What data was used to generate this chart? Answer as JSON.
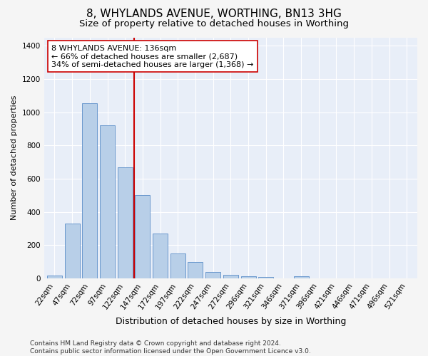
{
  "title": "8, WHYLANDS AVENUE, WORTHING, BN13 3HG",
  "subtitle": "Size of property relative to detached houses in Worthing",
  "xlabel": "Distribution of detached houses by size in Worthing",
  "ylabel": "Number of detached properties",
  "bar_labels": [
    "22sqm",
    "47sqm",
    "72sqm",
    "97sqm",
    "122sqm",
    "147sqm",
    "172sqm",
    "197sqm",
    "222sqm",
    "247sqm",
    "272sqm",
    "296sqm",
    "321sqm",
    "346sqm",
    "371sqm",
    "396sqm",
    "421sqm",
    "446sqm",
    "471sqm",
    "496sqm",
    "521sqm"
  ],
  "bar_values": [
    18,
    330,
    1055,
    920,
    670,
    500,
    270,
    150,
    100,
    40,
    22,
    15,
    10,
    0,
    12,
    0,
    0,
    0,
    0,
    0,
    0
  ],
  "bar_color": "#b8cfe8",
  "bar_edge_color": "#5b8dc8",
  "vline_color": "#cc0000",
  "annotation_line1": "8 WHYLANDS AVENUE: 136sqm",
  "annotation_line2": "← 66% of detached houses are smaller (2,687)",
  "annotation_line3": "34% of semi-detached houses are larger (1,368) →",
  "annotation_box_facecolor": "#ffffff",
  "annotation_box_edgecolor": "#cc0000",
  "ylim": [
    0,
    1450
  ],
  "yticks": [
    0,
    200,
    400,
    600,
    800,
    1000,
    1200,
    1400
  ],
  "background_color": "#e8eef8",
  "grid_color": "#ffffff",
  "fig_facecolor": "#f5f5f5",
  "footer_text": "Contains HM Land Registry data © Crown copyright and database right 2024.\nContains public sector information licensed under the Open Government Licence v3.0.",
  "title_fontsize": 11,
  "subtitle_fontsize": 9.5,
  "xlabel_fontsize": 9,
  "ylabel_fontsize": 8,
  "tick_fontsize": 7.5,
  "annotation_fontsize": 8,
  "footer_fontsize": 6.5
}
